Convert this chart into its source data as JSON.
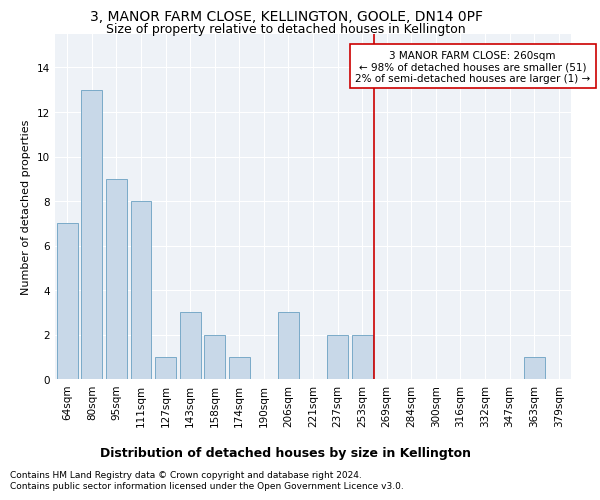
{
  "title": "3, MANOR FARM CLOSE, KELLINGTON, GOOLE, DN14 0PF",
  "subtitle": "Size of property relative to detached houses in Kellington",
  "xlabel_bottom": "Distribution of detached houses by size in Kellington",
  "ylabel": "Number of detached properties",
  "categories": [
    "64sqm",
    "80sqm",
    "95sqm",
    "111sqm",
    "127sqm",
    "143sqm",
    "158sqm",
    "174sqm",
    "190sqm",
    "206sqm",
    "221sqm",
    "237sqm",
    "253sqm",
    "269sqm",
    "284sqm",
    "300sqm",
    "316sqm",
    "332sqm",
    "347sqm",
    "363sqm",
    "379sqm"
  ],
  "values": [
    7,
    13,
    9,
    8,
    1,
    3,
    2,
    1,
    0,
    3,
    0,
    2,
    2,
    0,
    0,
    0,
    0,
    0,
    0,
    1,
    0
  ],
  "bar_color": "#c8d8e8",
  "bar_edgecolor": "#7aaac8",
  "vline_color": "#cc0000",
  "vline_x": 12.5,
  "annotation_text": "3 MANOR FARM CLOSE: 260sqm\n← 98% of detached houses are smaller (51)\n2% of semi-detached houses are larger (1) →",
  "annotation_box_color": "#cc0000",
  "ylim": [
    0,
    15.5
  ],
  "yticks": [
    0,
    2,
    4,
    6,
    8,
    10,
    12,
    14
  ],
  "background_color": "#eef2f7",
  "grid_color": "#ffffff",
  "fig_facecolor": "#ffffff",
  "footnote": "Contains HM Land Registry data © Crown copyright and database right 2024.\nContains public sector information licensed under the Open Government Licence v3.0.",
  "title_fontsize": 10,
  "subtitle_fontsize": 9,
  "ylabel_fontsize": 8,
  "tick_fontsize": 7.5,
  "annot_fontsize": 7.5,
  "xlabel_bottom_fontsize": 9,
  "footnote_fontsize": 6.5
}
